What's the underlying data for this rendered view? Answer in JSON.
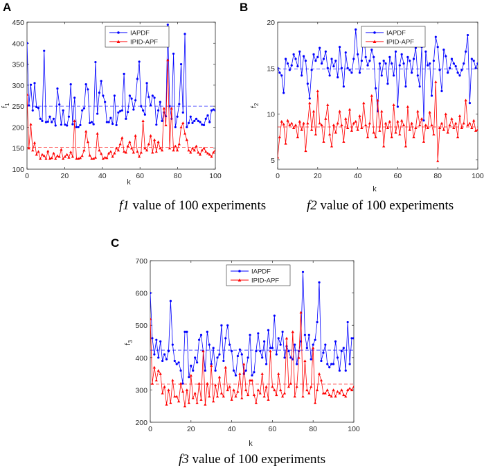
{
  "chart_data": [
    {
      "panel": "A",
      "type": "line",
      "xlabel": "k",
      "ylabel": "f",
      "ylabel_sub": "1",
      "xlim": [
        0,
        100
      ],
      "ylim": [
        100,
        450
      ],
      "xticks": [
        0,
        20,
        40,
        60,
        80,
        100
      ],
      "yticks": [
        100,
        150,
        200,
        250,
        300,
        350,
        400,
        450
      ],
      "legend_position": "top-center",
      "caption_var": "f",
      "caption_sub": "1",
      "caption_text": " value of 100 experiments",
      "series": [
        {
          "name": "IAPDF",
          "color": "#0000ff",
          "marker": "circle",
          "mean": 250,
          "values": [
            400,
            252,
            301,
            240,
            305,
            248,
            246,
            220,
            215,
            382,
            212,
            213,
            225,
            212,
            220,
            204,
            292,
            254,
            206,
            240,
            206,
            204,
            225,
            302,
            207,
            270,
            200,
            200,
            205,
            240,
            245,
            302,
            290,
            210,
            212,
            207,
            355,
            232,
            282,
            310,
            275,
            260,
            212,
            212,
            222,
            208,
            275,
            205,
            235,
            238,
            240,
            327,
            220,
            236,
            275,
            268,
            242,
            264,
            315,
            356,
            250,
            240,
            230,
            305,
            272,
            252,
            275,
            270,
            206,
            240,
            260,
            215,
            235,
            226,
            444,
            250,
            220,
            375,
            200,
            225,
            255,
            350,
            235,
            422,
            200,
            210,
            225,
            210,
            215,
            220,
            215,
            212,
            206,
            205,
            220,
            228,
            212,
            240,
            242,
            240
          ]
        },
        {
          "name": "IPID-APF",
          "color": "#ff0000",
          "marker": "triangle",
          "mean": 152,
          "values": [
            278,
            150,
            207,
            145,
            163,
            135,
            142,
            125,
            135,
            132,
            125,
            143,
            125,
            127,
            138,
            125,
            132,
            130,
            147,
            125,
            130,
            135,
            128,
            141,
            130,
            215,
            125,
            125,
            127,
            132,
            145,
            190,
            165,
            133,
            125,
            125,
            128,
            185,
            145,
            137,
            125,
            128,
            127,
            138,
            142,
            130,
            138,
            150,
            145,
            160,
            175,
            142,
            140,
            155,
            165,
            150,
            140,
            180,
            142,
            130,
            140,
            215,
            150,
            145,
            160,
            180,
            140,
            170,
            142,
            165,
            150,
            145,
            245,
            205,
            360,
            150,
            245,
            145,
            155,
            145,
            160,
            200,
            210,
            185,
            170,
            145,
            140,
            150,
            145,
            155,
            140,
            135,
            145,
            150,
            142,
            138,
            135,
            130,
            140,
            145
          ]
        }
      ]
    },
    {
      "panel": "B",
      "type": "line",
      "xlabel": "k",
      "ylabel": "f",
      "ylabel_sub": "2",
      "xlim": [
        0,
        100
      ],
      "ylim": [
        4,
        20
      ],
      "xticks": [
        0,
        20,
        40,
        60,
        80,
        100
      ],
      "yticks": [
        5,
        10,
        15,
        20
      ],
      "legend_position": "top-center",
      "caption_var": "f",
      "caption_sub": "2",
      "caption_text": " value of 100 experiments",
      "series": [
        {
          "name": "IAPDF",
          "color": "#0000ff",
          "marker": "circle",
          "mean": 14.9,
          "values": [
            15.0,
            14.5,
            14.2,
            12.3,
            16.0,
            15.5,
            14.8,
            15.3,
            16.5,
            16.0,
            15.2,
            16.8,
            14.2,
            16.3,
            15.8,
            13.3,
            11.7,
            14.8,
            16.5,
            15.8,
            16.2,
            17.2,
            15.5,
            16.0,
            16.8,
            15.0,
            14.2,
            16.0,
            15.2,
            15.8,
            14.0,
            17.3,
            15.0,
            13.0,
            16.7,
            15.0,
            14.8,
            14.5,
            16.0,
            19.2,
            16.5,
            14.5,
            15.8,
            19.0,
            16.2,
            15.3,
            15.8,
            17.0,
            16.2,
            12.8,
            10.3,
            15.5,
            14.2,
            15.8,
            15.5,
            13.3,
            16.2,
            15.5,
            14.2,
            16.8,
            10.8,
            15.3,
            16.5,
            15.5,
            13.0,
            16.2,
            15.8,
            14.5,
            16.0,
            17.2,
            14.2,
            13.0,
            17.3,
            9.3,
            16.8,
            15.3,
            15.5,
            12.0,
            15.8,
            18.4,
            17.3,
            14.8,
            12.5,
            17.0,
            16.3,
            14.5,
            15.0,
            16.0,
            15.5,
            15.2,
            14.5,
            14.2,
            14.8,
            15.5,
            16.8,
            18.6,
            11.2,
            16.0,
            15.8,
            15.0,
            15.5
          ]
        },
        {
          "name": "IPID-APF",
          "color": "#ff0000",
          "marker": "triangle",
          "mean": 8.6,
          "values": [
            5.3,
            7.5,
            9.2,
            8.9,
            6.8,
            9.3,
            8.8,
            9.0,
            8.5,
            8.8,
            7.5,
            9.2,
            8.3,
            9.0,
            6.0,
            9.0,
            11.2,
            8.3,
            10.3,
            7.8,
            12.5,
            9.0,
            8.8,
            7.0,
            9.5,
            11.0,
            7.8,
            6.5,
            8.8,
            8.0,
            9.0,
            10.3,
            8.8,
            7.0,
            9.5,
            8.5,
            10.5,
            8.2,
            9.0,
            9.2,
            8.3,
            9.8,
            8.5,
            11.2,
            8.8,
            7.5,
            9.0,
            12.0,
            8.0,
            7.5,
            11.5,
            8.2,
            10.3,
            6.5,
            9.0,
            8.5,
            9.2,
            7.5,
            11.0,
            8.0,
            9.2,
            7.8,
            9.3,
            8.8,
            6.5,
            10.8,
            8.3,
            9.0,
            7.5,
            8.5,
            10.3,
            8.8,
            9.5,
            7.0,
            8.8,
            8.5,
            10.2,
            8.8,
            7.8,
            13.5,
            4.9,
            8.5,
            9.0,
            8.3,
            10.0,
            8.0,
            8.8,
            9.5,
            8.5,
            9.0,
            7.5,
            9.8,
            8.5,
            9.0,
            11.5,
            8.8,
            9.0,
            8.5,
            9.3,
            8.2,
            8.3
          ]
        }
      ]
    },
    {
      "panel": "C",
      "type": "line",
      "xlabel": "k",
      "ylabel": "f",
      "ylabel_sub": "3",
      "xlim": [
        0,
        100
      ],
      "ylim": [
        200,
        700
      ],
      "xticks": [
        0,
        20,
        40,
        60,
        80,
        100
      ],
      "yticks": [
        200,
        300,
        400,
        500,
        600,
        700
      ],
      "legend_position": "top-center",
      "caption_var": "f",
      "caption_sub": "3",
      "caption_text": " value of 100 experiments",
      "series": [
        {
          "name": "IAPDF",
          "color": "#0000ff",
          "marker": "circle",
          "mean": 423,
          "values": [
            600,
            460,
            410,
            455,
            400,
            450,
            390,
            410,
            395,
            420,
            575,
            440,
            390,
            380,
            385,
            360,
            320,
            480,
            480,
            340,
            375,
            360,
            400,
            385,
            455,
            470,
            420,
            360,
            480,
            440,
            380,
            430,
            360,
            400,
            410,
            500,
            390,
            460,
            500,
            440,
            420,
            360,
            345,
            405,
            425,
            410,
            350,
            360,
            400,
            470,
            345,
            355,
            420,
            475,
            420,
            400,
            450,
            380,
            485,
            430,
            430,
            530,
            410,
            460,
            440,
            480,
            400,
            435,
            420,
            400,
            395,
            440,
            380,
            420,
            450,
            665,
            470,
            430,
            470,
            395,
            440,
            455,
            510,
            633,
            390,
            415,
            440,
            380,
            370,
            380,
            380,
            450,
            400,
            360,
            420,
            430,
            360,
            510,
            380,
            460,
            460
          ]
        },
        {
          "name": "IPID-APF",
          "color": "#ff0000",
          "marker": "triangle",
          "mean": 318,
          "values": [
            520,
            320,
            370,
            330,
            360,
            350,
            290,
            310,
            255,
            300,
            260,
            330,
            280,
            280,
            265,
            320,
            295,
            250,
            300,
            260,
            345,
            275,
            290,
            260,
            320,
            270,
            420,
            255,
            320,
            280,
            375,
            265,
            315,
            280,
            340,
            290,
            280,
            370,
            300,
            310,
            270,
            300,
            280,
            295,
            350,
            275,
            380,
            300,
            285,
            330,
            330,
            285,
            260,
            300,
            290,
            350,
            280,
            310,
            270,
            420,
            310,
            300,
            285,
            350,
            300,
            280,
            290,
            460,
            310,
            320,
            480,
            280,
            310,
            400,
            540,
            280,
            390,
            300,
            290,
            310,
            430,
            260,
            300,
            350,
            330,
            290,
            290,
            300,
            285,
            280,
            300,
            280,
            295,
            290,
            300,
            285,
            280,
            300,
            305,
            300,
            310
          ]
        }
      ]
    }
  ]
}
